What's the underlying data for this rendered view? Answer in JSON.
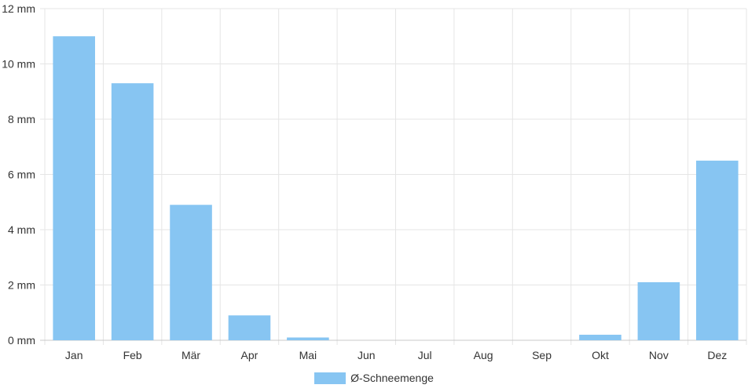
{
  "chart_data": {
    "type": "bar",
    "categories": [
      "Jan",
      "Feb",
      "Mär",
      "Apr",
      "Mai",
      "Jun",
      "Jul",
      "Aug",
      "Sep",
      "Okt",
      "Nov",
      "Dez"
    ],
    "series": [
      {
        "name": "Ø-Schneemenge",
        "values": [
          11.0,
          9.3,
          4.9,
          0.9,
          0.1,
          0,
          0,
          0,
          0,
          0.2,
          2.1,
          6.5
        ]
      }
    ],
    "y_unit_suffix": " mm",
    "ylim": [
      0,
      12
    ],
    "yticks": [
      0,
      2,
      4,
      6,
      8,
      10,
      12
    ],
    "ytick_labels": [
      "0 mm",
      "2 mm",
      "4 mm",
      "6 mm",
      "8 mm",
      "10 mm",
      "12 mm"
    ],
    "title": "",
    "xlabel": "",
    "ylabel": "",
    "grid": true,
    "legend_position": "bottom-center",
    "colors": {
      "bar": "#87c5f2",
      "grid": "#e5e5e5",
      "axis": "#c8c8c8",
      "text": "#333333"
    }
  }
}
